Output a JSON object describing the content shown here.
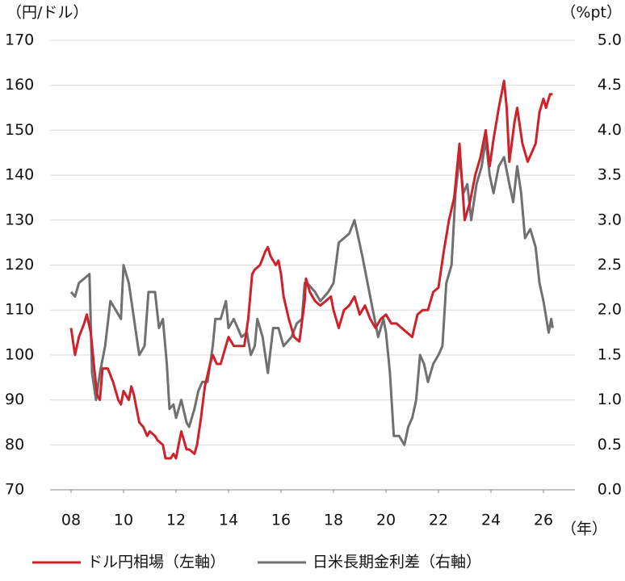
{
  "chart_data": {
    "type": "line",
    "y_label": "（円/ドル）",
    "y2_label": "（%pt）",
    "x_label": "（年）",
    "xlim": [
      2007.2,
      2027.2
    ],
    "xticks": [
      {
        "value": 2008,
        "label": "08"
      },
      {
        "value": 2010,
        "label": "10"
      },
      {
        "value": 2012,
        "label": "12"
      },
      {
        "value": 2014,
        "label": "14"
      },
      {
        "value": 2016,
        "label": "16"
      },
      {
        "value": 2018,
        "label": "18"
      },
      {
        "value": 2020,
        "label": "20"
      },
      {
        "value": 2022,
        "label": "22"
      },
      {
        "value": 2024,
        "label": "24"
      },
      {
        "value": 2026,
        "label": "26"
      }
    ],
    "ylim": [
      70,
      170
    ],
    "yticks": [
      70,
      80,
      90,
      100,
      110,
      120,
      130,
      140,
      150,
      160,
      170
    ],
    "y2lim": [
      0,
      5
    ],
    "y2ticks": [
      {
        "value": 0,
        "label": "0.0"
      },
      {
        "value": 0.5,
        "label": "0.5"
      },
      {
        "value": 1,
        "label": "1.0"
      },
      {
        "value": 1.5,
        "label": "1.5"
      },
      {
        "value": 2,
        "label": "2.0"
      },
      {
        "value": 2.5,
        "label": "2.5"
      },
      {
        "value": 3,
        "label": "3.0"
      },
      {
        "value": 3.5,
        "label": "3.5"
      },
      {
        "value": 4,
        "label": "4.0"
      },
      {
        "value": 4.5,
        "label": "4.5"
      },
      {
        "value": 5,
        "label": "5.0"
      }
    ],
    "grid": true,
    "series": [
      {
        "name": "ドル円相場（左軸）",
        "color": "#d0202a",
        "axis": "y",
        "x": [
          2008.0,
          2008.15,
          2008.3,
          2008.5,
          2008.6,
          2008.75,
          2008.9,
          2009.0,
          2009.1,
          2009.2,
          2009.4,
          2009.6,
          2009.8,
          2009.9,
          2010.0,
          2010.2,
          2010.3,
          2010.4,
          2010.5,
          2010.6,
          2010.75,
          2010.9,
          2011.0,
          2011.2,
          2011.3,
          2011.5,
          2011.6,
          2011.8,
          2011.9,
          2012.0,
          2012.1,
          2012.2,
          2012.4,
          2012.5,
          2012.7,
          2012.8,
          2012.95,
          2013.1,
          2013.3,
          2013.4,
          2013.55,
          2013.7,
          2013.85,
          2014.0,
          2014.2,
          2014.4,
          2014.6,
          2014.75,
          2014.9,
          2015.0,
          2015.2,
          2015.4,
          2015.5,
          2015.6,
          2015.8,
          2015.9,
          2016.0,
          2016.1,
          2016.3,
          2016.5,
          2016.7,
          2016.9,
          2016.95,
          2017.1,
          2017.3,
          2017.5,
          2017.7,
          2017.9,
          2018.0,
          2018.2,
          2018.4,
          2018.6,
          2018.8,
          2019.0,
          2019.2,
          2019.4,
          2019.6,
          2019.8,
          2020.0,
          2020.2,
          2020.4,
          2020.6,
          2020.8,
          2021.0,
          2021.2,
          2021.4,
          2021.6,
          2021.8,
          2022.0,
          2022.2,
          2022.4,
          2022.6,
          2022.8,
          2022.9,
          2023.0,
          2023.2,
          2023.4,
          2023.6,
          2023.8,
          2023.95,
          2024.1,
          2024.3,
          2024.5,
          2024.6,
          2024.7,
          2024.9,
          2025.0,
          2025.2,
          2025.4,
          2025.55,
          2025.7,
          2025.85,
          2026.0,
          2026.1,
          2026.25,
          2026.35
        ],
        "values": [
          106,
          100,
          104,
          107,
          109,
          105,
          96,
          91,
          90,
          97,
          97,
          94,
          90,
          89,
          92,
          90,
          93,
          91,
          88,
          85,
          84,
          82,
          83,
          82,
          81,
          80,
          77,
          77,
          78,
          77,
          80,
          83,
          79,
          79,
          78,
          80,
          86,
          93,
          98,
          100,
          98,
          98,
          101,
          104,
          102,
          102,
          102,
          108,
          118,
          119,
          120,
          123,
          124,
          122,
          120,
          121,
          118,
          113,
          108,
          104,
          103,
          112,
          117,
          114,
          112,
          111,
          112,
          113,
          110,
          106,
          110,
          111,
          113,
          109,
          111,
          108,
          106,
          108,
          109,
          107,
          107,
          106,
          105,
          104,
          109,
          110,
          110,
          114,
          115,
          123,
          130,
          135,
          147,
          138,
          130,
          134,
          140,
          144,
          150,
          142,
          148,
          155,
          161,
          155,
          143,
          152,
          155,
          147,
          143,
          145,
          147,
          154,
          157,
          155,
          158,
          158
        ]
      },
      {
        "name": "日米長期金利差（右軸）",
        "color": "#707070",
        "axis": "y2",
        "x": [
          2008.0,
          2008.15,
          2008.3,
          2008.5,
          2008.7,
          2008.8,
          2008.95,
          2009.1,
          2009.3,
          2009.5,
          2009.7,
          2009.9,
          2010.0,
          2010.2,
          2010.35,
          2010.5,
          2010.6,
          2010.8,
          2010.95,
          2011.2,
          2011.35,
          2011.5,
          2011.65,
          2011.75,
          2011.9,
          2012.0,
          2012.2,
          2012.4,
          2012.5,
          2012.7,
          2012.85,
          2013.0,
          2013.2,
          2013.4,
          2013.5,
          2013.7,
          2013.9,
          2014.0,
          2014.2,
          2014.5,
          2014.7,
          2014.85,
          2015.0,
          2015.1,
          2015.3,
          2015.5,
          2015.7,
          2015.9,
          2016.1,
          2016.4,
          2016.6,
          2016.8,
          2016.9,
          2017.0,
          2017.3,
          2017.5,
          2017.8,
          2018.0,
          2018.2,
          2018.4,
          2018.6,
          2018.8,
          2018.95,
          2019.1,
          2019.3,
          2019.5,
          2019.7,
          2019.9,
          2020.0,
          2020.15,
          2020.3,
          2020.5,
          2020.7,
          2020.85,
          2021.0,
          2021.15,
          2021.3,
          2021.45,
          2021.6,
          2021.8,
          2022.0,
          2022.15,
          2022.3,
          2022.5,
          2022.65,
          2022.8,
          2022.95,
          2023.1,
          2023.25,
          2023.45,
          2023.65,
          2023.8,
          2023.95,
          2024.1,
          2024.3,
          2024.5,
          2024.7,
          2024.85,
          2025.0,
          2025.15,
          2025.3,
          2025.5,
          2025.7,
          2025.85,
          2026.0,
          2026.2,
          2026.3,
          2026.35
        ],
        "values": [
          2.2,
          2.15,
          2.3,
          2.35,
          2.4,
          1.3,
          1.0,
          1.3,
          1.6,
          2.1,
          2.0,
          1.9,
          2.5,
          2.3,
          2.0,
          1.7,
          1.5,
          1.6,
          2.2,
          2.2,
          1.8,
          1.9,
          1.4,
          0.9,
          0.95,
          0.8,
          1.0,
          0.75,
          0.7,
          0.9,
          1.1,
          1.2,
          1.2,
          1.6,
          1.9,
          1.9,
          2.1,
          1.8,
          1.9,
          1.7,
          1.75,
          1.5,
          1.6,
          1.9,
          1.7,
          1.3,
          1.8,
          1.8,
          1.6,
          1.7,
          1.85,
          1.9,
          2.3,
          2.3,
          2.2,
          2.1,
          2.2,
          2.3,
          2.75,
          2.8,
          2.85,
          3.0,
          2.8,
          2.6,
          2.3,
          2.0,
          1.7,
          1.9,
          1.75,
          1.3,
          0.6,
          0.6,
          0.5,
          0.7,
          0.8,
          1.0,
          1.5,
          1.4,
          1.2,
          1.4,
          1.5,
          1.6,
          2.3,
          2.5,
          3.3,
          3.7,
          3.3,
          3.4,
          3.0,
          3.4,
          3.6,
          3.9,
          3.5,
          3.3,
          3.6,
          3.7,
          3.4,
          3.2,
          3.6,
          3.3,
          2.8,
          2.9,
          2.7,
          2.3,
          2.1,
          1.75,
          1.9,
          1.8
        ]
      }
    ]
  }
}
